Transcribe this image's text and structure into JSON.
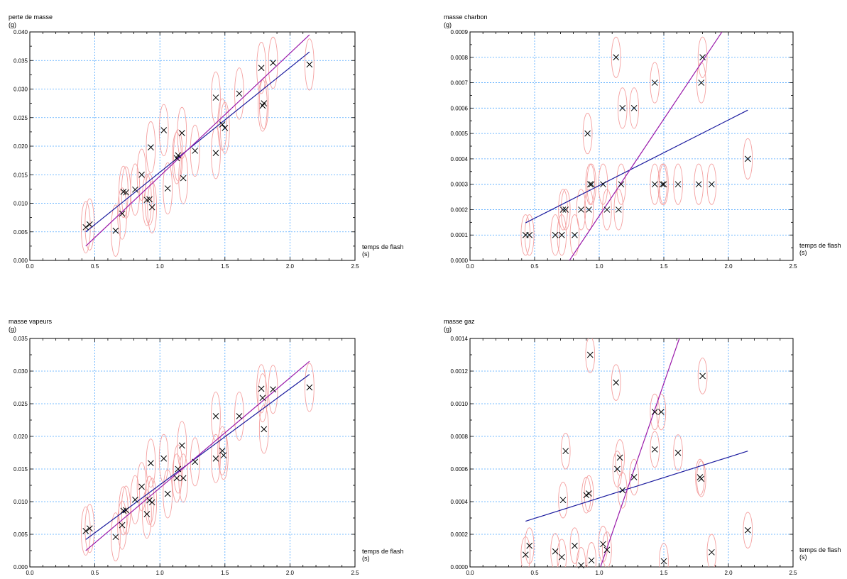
{
  "chart_data": [
    {
      "type": "scatter",
      "ylabel": "perte de masse",
      "yunit": "(g)",
      "xlabel": "temps de flash",
      "xunit": "(s)",
      "xlim": [
        0,
        2.5
      ],
      "ylim": [
        0,
        0.04
      ],
      "xticks": [
        "0.0",
        "0.5",
        "1.0",
        "1.5",
        "2.0",
        "2.5"
      ],
      "yticks": [
        "0.000",
        "0.005",
        "0.010",
        "0.015",
        "0.020",
        "0.025",
        "0.030",
        "0.035",
        "0.040"
      ],
      "grid": true,
      "points": [
        [
          0.43,
          0.0058
        ],
        [
          0.46,
          0.0063
        ],
        [
          0.66,
          0.0052
        ],
        [
          0.71,
          0.0082
        ],
        [
          0.72,
          0.012
        ],
        [
          0.74,
          0.0119
        ],
        [
          0.81,
          0.0124
        ],
        [
          0.86,
          0.015
        ],
        [
          0.9,
          0.0106
        ],
        [
          0.92,
          0.0107
        ],
        [
          0.93,
          0.0198
        ],
        [
          0.94,
          0.0093
        ],
        [
          1.03,
          0.0228
        ],
        [
          1.06,
          0.0126
        ],
        [
          1.13,
          0.0179
        ],
        [
          1.14,
          0.0184
        ],
        [
          1.17,
          0.0223
        ],
        [
          1.18,
          0.0144
        ],
        [
          1.27,
          0.0192
        ],
        [
          1.43,
          0.0285
        ],
        [
          1.43,
          0.0188
        ],
        [
          1.48,
          0.0238
        ],
        [
          1.5,
          0.0232
        ],
        [
          1.61,
          0.0292
        ],
        [
          1.78,
          0.0337
        ],
        [
          1.79,
          0.0271
        ],
        [
          1.8,
          0.0275
        ],
        [
          1.87,
          0.0346
        ],
        [
          2.15,
          0.0343
        ]
      ],
      "ellipses": {
        "rx": 0.035,
        "ry": 0.0045
      },
      "fits": [
        {
          "color": "#1a1a9e",
          "x": [
            0.43,
            2.15
          ],
          "y": [
            0.005,
            0.0365
          ]
        },
        {
          "color": "#9a1aaa",
          "x": [
            0.43,
            2.15
          ],
          "y": [
            0.0025,
            0.0395
          ]
        }
      ]
    },
    {
      "type": "scatter",
      "ylabel": "masse charbon",
      "yunit": "(g)",
      "xlabel": "temps de flash",
      "xunit": "(s)",
      "xlim": [
        0,
        2.5
      ],
      "ylim": [
        0,
        0.0009
      ],
      "xticks": [
        "0.0",
        "0.5",
        "1.0",
        "1.5",
        "2.0",
        "2.5"
      ],
      "yticks": [
        "0.0000",
        "0.0001",
        "0.0002",
        "0.0003",
        "0.0004",
        "0.0005",
        "0.0006",
        "0.0007",
        "0.0008",
        "0.0009"
      ],
      "grid": true,
      "points": [
        [
          0.43,
          0.0001
        ],
        [
          0.46,
          0.0001
        ],
        [
          0.66,
          0.0001
        ],
        [
          0.71,
          0.0001
        ],
        [
          0.72,
          0.0002
        ],
        [
          0.74,
          0.0002
        ],
        [
          0.81,
          0.0001
        ],
        [
          0.86,
          0.0002
        ],
        [
          0.91,
          0.0005
        ],
        [
          0.92,
          0.0002
        ],
        [
          0.93,
          0.0003
        ],
        [
          0.94,
          0.0003
        ],
        [
          1.03,
          0.0003
        ],
        [
          1.06,
          0.0002
        ],
        [
          1.13,
          0.0008
        ],
        [
          1.15,
          0.0002
        ],
        [
          1.17,
          0.0003
        ],
        [
          1.18,
          0.0006
        ],
        [
          1.27,
          0.0006
        ],
        [
          1.43,
          0.0007
        ],
        [
          1.43,
          0.0003
        ],
        [
          1.49,
          0.0003
        ],
        [
          1.5,
          0.0003
        ],
        [
          1.61,
          0.0003
        ],
        [
          1.77,
          0.0003
        ],
        [
          1.79,
          0.0007
        ],
        [
          1.8,
          0.0008
        ],
        [
          1.87,
          0.0003
        ],
        [
          2.15,
          0.0004
        ]
      ],
      "ellipses": {
        "rx": 0.035,
        "ry": 8e-05
      },
      "fits": [
        {
          "color": "#1a1a9e",
          "x": [
            0.43,
            2.15
          ],
          "y": [
            0.000148,
            0.000592
          ]
        },
        {
          "color": "#9a1aaa",
          "x": [
            0.77,
            1.95
          ],
          "y": [
            0.0,
            0.0009
          ]
        }
      ]
    },
    {
      "type": "scatter",
      "ylabel": "masse vapeurs",
      "yunit": "(g)",
      "xlabel": "temps de flash",
      "xunit": "(s)",
      "xlim": [
        0,
        2.5
      ],
      "ylim": [
        0,
        0.035
      ],
      "xticks": [
        "0.0",
        "0.5",
        "1.0",
        "1.5",
        "2.0",
        "2.5"
      ],
      "yticks": [
        "0.000",
        "0.005",
        "0.010",
        "0.015",
        "0.020",
        "0.025",
        "0.030",
        "0.035"
      ],
      "grid": true,
      "points": [
        [
          0.43,
          0.0055
        ],
        [
          0.46,
          0.0059
        ],
        [
          0.66,
          0.0046
        ],
        [
          0.71,
          0.0064
        ],
        [
          0.72,
          0.0086
        ],
        [
          0.74,
          0.0087
        ],
        [
          0.81,
          0.0103
        ],
        [
          0.86,
          0.0123
        ],
        [
          0.9,
          0.0081
        ],
        [
          0.92,
          0.0102
        ],
        [
          0.93,
          0.0159
        ],
        [
          0.94,
          0.0099
        ],
        [
          1.03,
          0.0166
        ],
        [
          1.06,
          0.0112
        ],
        [
          1.13,
          0.0136
        ],
        [
          1.14,
          0.015
        ],
        [
          1.17,
          0.0186
        ],
        [
          1.18,
          0.0136
        ],
        [
          1.27,
          0.0161
        ],
        [
          1.43,
          0.0231
        ],
        [
          1.43,
          0.0166
        ],
        [
          1.48,
          0.0178
        ],
        [
          1.49,
          0.0171
        ],
        [
          1.61,
          0.0231
        ],
        [
          1.78,
          0.0273
        ],
        [
          1.79,
          0.0259
        ],
        [
          1.8,
          0.0211
        ],
        [
          1.87,
          0.0272
        ],
        [
          2.15,
          0.0275
        ]
      ],
      "ellipses": {
        "rx": 0.035,
        "ry": 0.0037
      },
      "fits": [
        {
          "color": "#1a1a9e",
          "x": [
            0.43,
            2.15
          ],
          "y": [
            0.0042,
            0.0295
          ]
        },
        {
          "color": "#9a1aaa",
          "x": [
            0.43,
            2.15
          ],
          "y": [
            0.0025,
            0.0315
          ]
        }
      ]
    },
    {
      "type": "scatter",
      "ylabel": "masse gaz",
      "yunit": "(g)",
      "xlabel": "temps de flash",
      "xunit": "(s)",
      "xlim": [
        0,
        2.5
      ],
      "ylim": [
        0,
        0.0014
      ],
      "xticks": [
        "0.0",
        "0.5",
        "1.0",
        "1.5",
        "2.0",
        "2.5"
      ],
      "yticks": [
        "0.0000",
        "0.0002",
        "0.0004",
        "0.0006",
        "0.0008",
        "0.0010",
        "0.0012",
        "0.0014"
      ],
      "grid": true,
      "points": [
        [
          0.43,
          7.5e-05
        ],
        [
          0.46,
          0.00013
        ],
        [
          0.66,
          9.5e-05
        ],
        [
          0.71,
          6e-05
        ],
        [
          0.72,
          0.00041
        ],
        [
          0.74,
          0.00071
        ],
        [
          0.81,
          0.00013
        ],
        [
          0.86,
          1e-05
        ],
        [
          0.9,
          0.00044
        ],
        [
          0.92,
          0.00045
        ],
        [
          0.93,
          0.0013
        ],
        [
          0.94,
          4e-05
        ],
        [
          1.03,
          0.00014
        ],
        [
          1.06,
          0.000105
        ],
        [
          1.13,
          0.00113
        ],
        [
          1.14,
          0.0006
        ],
        [
          1.16,
          0.00067
        ],
        [
          1.18,
          0.00047
        ],
        [
          1.27,
          0.00055
        ],
        [
          1.43,
          0.00095
        ],
        [
          1.43,
          0.00072
        ],
        [
          1.48,
          0.00095
        ],
        [
          1.5,
          3.5e-05
        ],
        [
          1.61,
          0.0007
        ],
        [
          1.78,
          0.00055
        ],
        [
          1.79,
          0.00054
        ],
        [
          1.8,
          0.00117
        ],
        [
          1.87,
          9e-05
        ],
        [
          2.15,
          0.000225
        ]
      ],
      "ellipses": {
        "rx": 0.035,
        "ry": 0.00011
      },
      "fits": [
        {
          "color": "#1a1a9e",
          "x": [
            0.43,
            2.15
          ],
          "y": [
            0.00028,
            0.00071
          ]
        },
        {
          "color": "#9a1aaa",
          "x": [
            1.01,
            1.62
          ],
          "y": [
            0.0,
            0.0014
          ]
        }
      ]
    }
  ]
}
